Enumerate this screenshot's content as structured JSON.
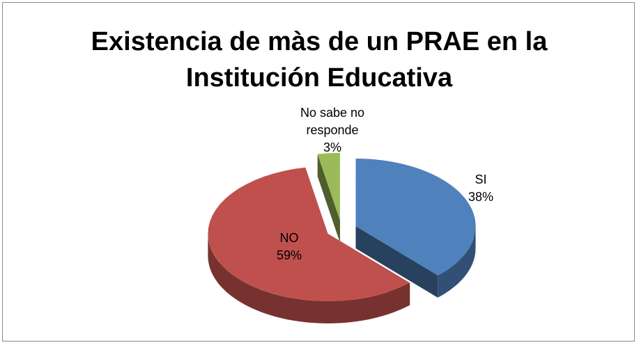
{
  "chart_data": {
    "type": "pie3d",
    "title": "Existencia de màs de un PRAE en la Institución Educativa",
    "categories": [
      "SI",
      "NO",
      "No sabe no responde"
    ],
    "values": [
      38,
      59,
      3
    ],
    "value_labels": [
      "38%",
      "59%",
      "3%"
    ],
    "colors": [
      "#4f81bd",
      "#c0504d",
      "#9bbb59"
    ]
  }
}
